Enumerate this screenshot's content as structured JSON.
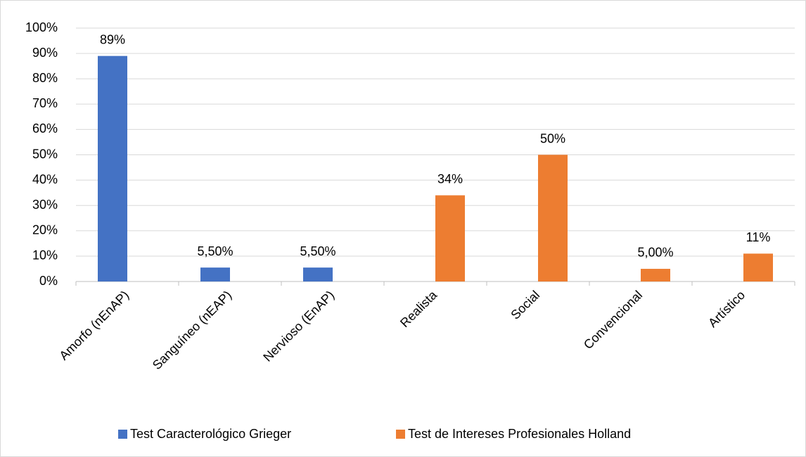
{
  "chart_data": {
    "type": "bar",
    "categories": [
      "Amorfo (nEnAP)",
      "Sanguíneo (nEAP)",
      "Nervioso (EnAP)",
      "Realista",
      "Social",
      "Convencional",
      "Artístico"
    ],
    "series": [
      {
        "name": "Test Caracterológico Grieger",
        "color": "#4472c4",
        "values": [
          89,
          5.5,
          5.5,
          null,
          null,
          null,
          null
        ],
        "value_labels": [
          "89%",
          "5,50%",
          "5,50%",
          null,
          null,
          null,
          null
        ]
      },
      {
        "name": "Test de Intereses Profesionales Holland",
        "color": "#ed7d31",
        "values": [
          null,
          null,
          null,
          34,
          50,
          5,
          11
        ],
        "value_labels": [
          null,
          null,
          null,
          "34%",
          "50%",
          "5,00%",
          "11%"
        ]
      }
    ],
    "ylim": [
      0,
      100
    ],
    "yticks": [
      {
        "value": 0,
        "label": "0%"
      },
      {
        "value": 10,
        "label": "10%"
      },
      {
        "value": 20,
        "label": "20%"
      },
      {
        "value": 30,
        "label": "30%"
      },
      {
        "value": 40,
        "label": "40%"
      },
      {
        "value": 50,
        "label": "50%"
      },
      {
        "value": 60,
        "label": "60%"
      },
      {
        "value": 70,
        "label": "70%"
      },
      {
        "value": 80,
        "label": "80%"
      },
      {
        "value": 90,
        "label": "90%"
      },
      {
        "value": 100,
        "label": "100%"
      }
    ],
    "grid": true,
    "legend": "bottom"
  }
}
